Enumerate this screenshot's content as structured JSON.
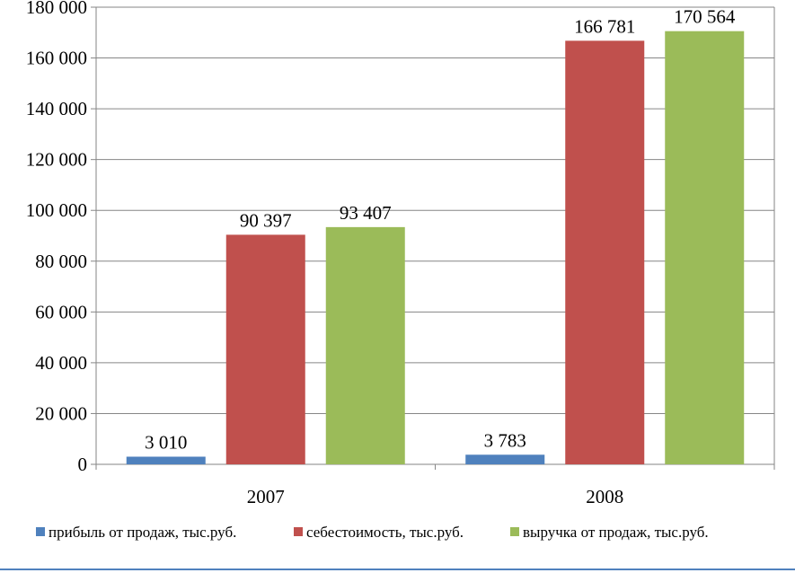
{
  "chart_data": {
    "type": "bar",
    "categories": [
      "2007",
      "2008"
    ],
    "series": [
      {
        "name": "прибыль от продаж, тыс.руб.",
        "values": [
          3010,
          3783
        ],
        "labels": [
          "3 010",
          "3 783"
        ],
        "color": "#4F81BD"
      },
      {
        "name": "себестоимость, тыс.руб.",
        "values": [
          90397,
          166781
        ],
        "labels": [
          "90 397",
          "166 781"
        ],
        "color": "#C0504D"
      },
      {
        "name": "выручка от продаж, тыс.руб.",
        "values": [
          93407,
          170564
        ],
        "labels": [
          "93 407",
          "170 564"
        ],
        "color": "#9BBB59"
      }
    ],
    "ylim": [
      0,
      180000
    ],
    "yticks": [
      0,
      20000,
      40000,
      60000,
      80000,
      100000,
      120000,
      140000,
      160000,
      180000
    ],
    "ytick_labels": [
      "0",
      "20 000",
      "40 000",
      "60 000",
      "80 000",
      "100 000",
      "120 000",
      "140 000",
      "160 000",
      "180 000"
    ],
    "grid": true,
    "legend_position": "bottom",
    "gridline_color": "#868686",
    "divider_color": "#4F81BD"
  }
}
